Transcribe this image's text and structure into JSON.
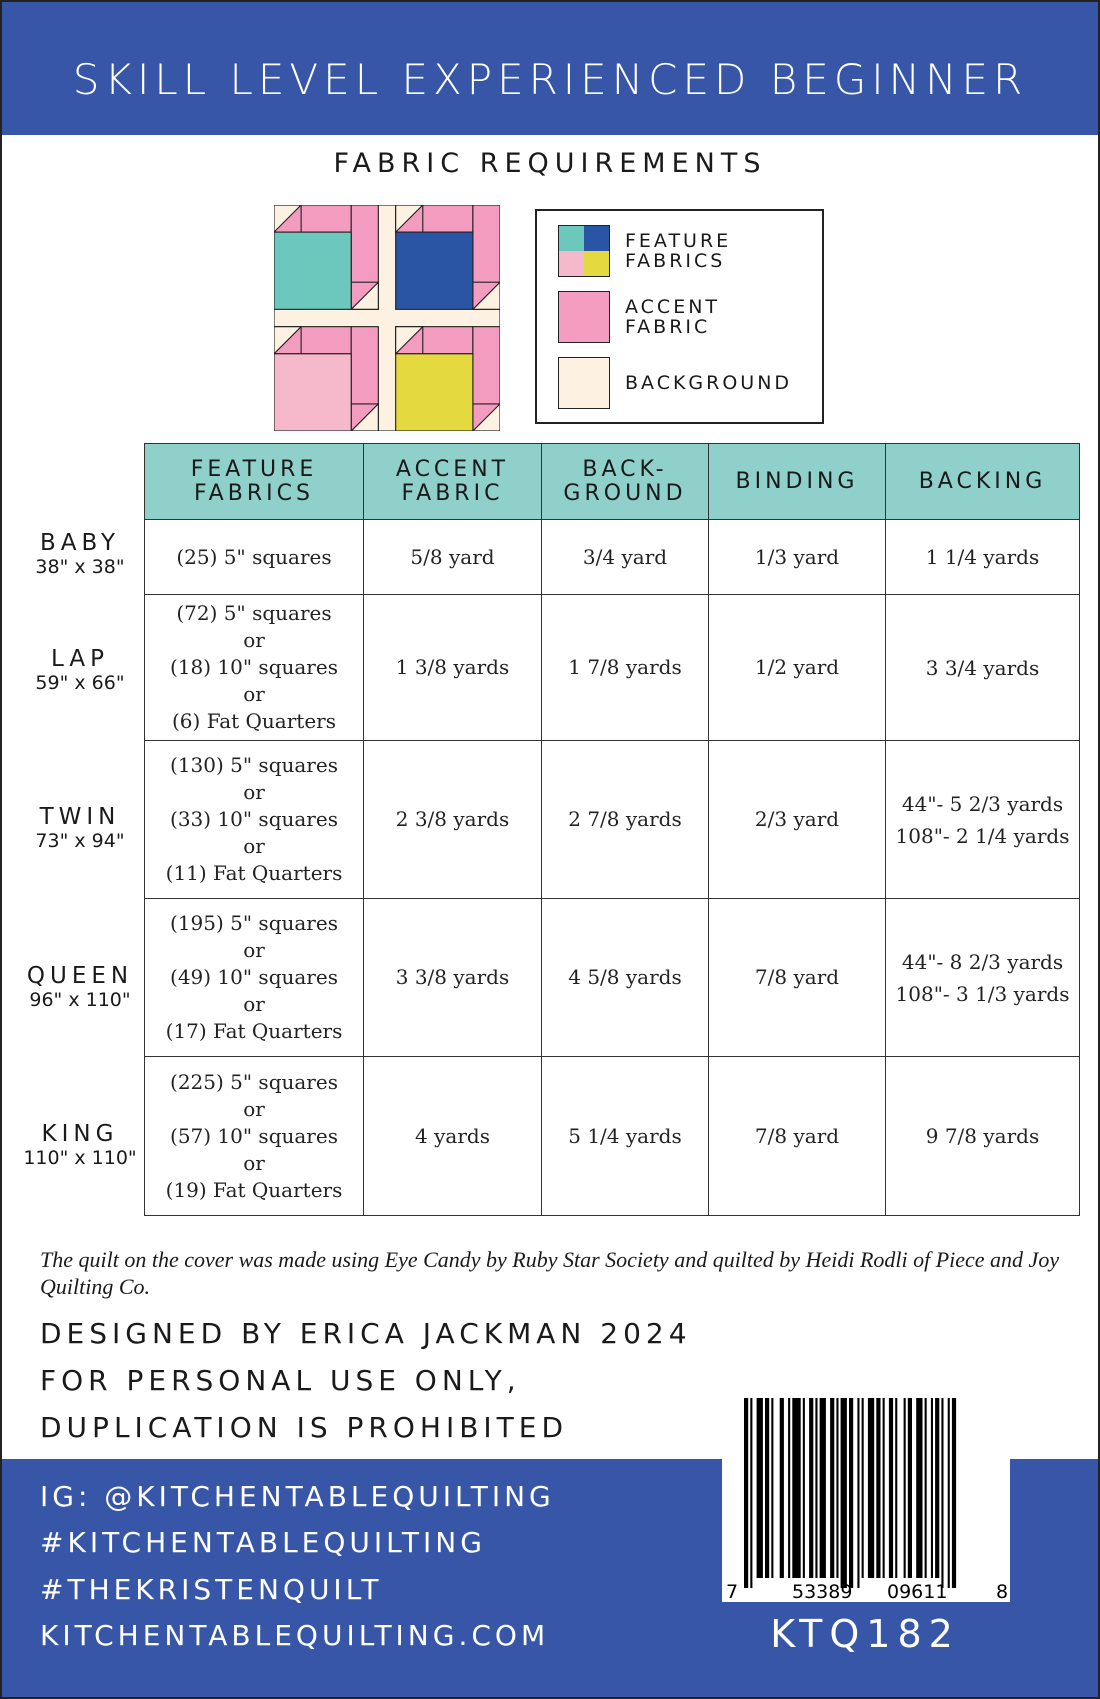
{
  "header": {
    "title": "SKILL LEVEL EXPERIENCED BEGINNER"
  },
  "section_title": "FABRIC REQUIREMENTS",
  "colors": {
    "brand_blue": "#3856a8",
    "header_teal": "#90d0cb",
    "teal": "#6cc7bc",
    "navy": "#2a55a5",
    "light_pink": "#f6b9cb",
    "yellow": "#e4da40",
    "accent_pink": "#f49bc0",
    "background_cream": "#fdf1e1"
  },
  "legend": [
    {
      "label_line1": "FEATURE",
      "label_line2": "FABRICS"
    },
    {
      "label_line1": "ACCENT",
      "label_line2": "FABRIC"
    },
    {
      "label_line1": "BACKGROUND",
      "label_line2": ""
    }
  ],
  "table": {
    "columns": [
      [
        "FEATURE",
        "FABRICS"
      ],
      [
        "ACCENT",
        "FABRIC"
      ],
      [
        "BACK-",
        "GROUND"
      ],
      [
        "BINDING",
        ""
      ],
      [
        "BACKING",
        ""
      ]
    ],
    "rows": [
      {
        "size": "BABY",
        "dims": "38\" x 38\"",
        "feature": [
          "(25) 5\" squares"
        ],
        "accent": "5/8 yard",
        "background": "3/4 yard",
        "binding": "1/3 yard",
        "backing": [
          "1 1/4 yards"
        ]
      },
      {
        "size": "LAP",
        "dims": "59\" x 66\"",
        "feature": [
          "(72) 5\" squares",
          "or",
          "(18) 10\" squares",
          "or",
          "(6) Fat Quarters"
        ],
        "accent": "1 3/8 yards",
        "background": "1 7/8 yards",
        "binding": "1/2 yard",
        "backing": [
          "3 3/4 yards"
        ]
      },
      {
        "size": "TWIN",
        "dims": "73\" x 94\"",
        "feature": [
          "(130) 5\" squares",
          "or",
          "(33) 10\" squares",
          "or",
          "(11) Fat Quarters"
        ],
        "accent": "2 3/8 yards",
        "background": "2 7/8 yards",
        "binding": "2/3 yard",
        "backing": [
          "44\"- 5 2/3 yards",
          "108\"- 2 1/4 yards"
        ]
      },
      {
        "size": "QUEEN",
        "dims": "96\" x 110\"",
        "feature": [
          "(195) 5\" squares",
          "or",
          "(49) 10\" squares",
          "or",
          "(17) Fat Quarters"
        ],
        "accent": "3 3/8 yards",
        "background": "4 5/8 yards",
        "binding": "7/8 yard",
        "backing": [
          "44\"- 8 2/3 yards",
          "108\"- 3 1/3 yards"
        ]
      },
      {
        "size": "KING",
        "dims": "110\" x 110\"",
        "feature": [
          "(225) 5\" squares",
          "or",
          "(57) 10\" squares",
          "or",
          "(19) Fat Quarters"
        ],
        "accent": "4 yards",
        "background": "5 1/4 yards",
        "binding": "7/8 yard",
        "backing": [
          "9 7/8 yards"
        ]
      }
    ]
  },
  "note": "The quilt on the cover was made using Eye Candy by Ruby Star Society and quilted by Heidi Rodli of Piece and Joy Quilting Co.",
  "credits": [
    "DESIGNED BY ERICA JACKMAN 2024",
    "FOR PERSONAL USE ONLY,",
    "DUPLICATION IS PROHIBITED"
  ],
  "social": [
    "IG: @KITCHENTABLEQUILTING",
    "#KITCHENTABLEQUILTING",
    "#THEKRISTENQUILT",
    "KITCHENTABLEQUILTING.COM"
  ],
  "barcode": {
    "lead": "7",
    "left": "53389",
    "right": "09611",
    "check": "8"
  },
  "sku": "KTQ182"
}
